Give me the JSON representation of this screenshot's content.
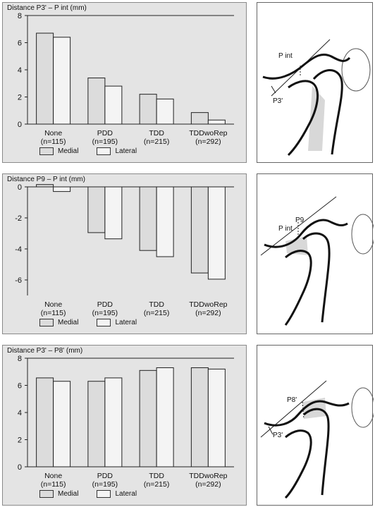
{
  "chart_data": [
    {
      "type": "bar",
      "title": "Distance P3' – P int (mm)",
      "categories": [
        "None",
        "PDD",
        "TDD",
        "TDDwoRep"
      ],
      "category_sublabels": [
        "(n=115)",
        "(n=195)",
        "(n=215)",
        "(n=292)"
      ],
      "series": [
        {
          "name": "Medial",
          "values": [
            6.7,
            3.4,
            2.2,
            0.85
          ]
        },
        {
          "name": "Lateral",
          "values": [
            6.4,
            2.8,
            1.85,
            0.3
          ]
        }
      ],
      "ylim": [
        0,
        8
      ],
      "yticks": [
        0,
        2,
        4,
        6,
        8
      ],
      "xlabel": "",
      "ylabel": "",
      "grid": false,
      "legend_position": "bottom"
    },
    {
      "type": "bar",
      "title": "Distance P9 – P int (mm)",
      "categories": [
        "None",
        "PDD",
        "TDD",
        "TDDwoRep"
      ],
      "category_sublabels": [
        "(n=115)",
        "(n=195)",
        "(n=215)",
        "(n=292)"
      ],
      "series": [
        {
          "name": "Medial",
          "values": [
            0.15,
            -2.95,
            -4.1,
            -5.55
          ]
        },
        {
          "name": "Lateral",
          "values": [
            -0.3,
            -3.35,
            -4.5,
            -5.95
          ]
        }
      ],
      "ylim": [
        -7,
        0
      ],
      "yticks": [
        0,
        -2,
        -4,
        -6
      ],
      "xlabel": "",
      "ylabel": "",
      "grid": false,
      "legend_position": "bottom"
    },
    {
      "type": "bar",
      "title": "Distance P3' – P8' (mm)",
      "categories": [
        "None",
        "PDD",
        "TDD",
        "TDDwoRep"
      ],
      "category_sublabels": [
        "(n=115)",
        "(n=195)",
        "(n=215)",
        "(n=292)"
      ],
      "series": [
        {
          "name": "Medial",
          "values": [
            6.55,
            6.3,
            7.1,
            7.3
          ]
        },
        {
          "name": "Lateral",
          "values": [
            6.3,
            6.55,
            7.3,
            7.2
          ]
        }
      ],
      "ylim": [
        0,
        8
      ],
      "yticks": [
        0,
        2,
        4,
        6,
        8
      ],
      "xlabel": "",
      "ylabel": "",
      "grid": false,
      "legend_position": "bottom"
    }
  ],
  "colors": {
    "medial": "#dcdcdc",
    "lateral": "#f4f4f4",
    "panel_bg": "#e4e4e4",
    "bar_stroke": "#222222"
  },
  "diagrams": [
    {
      "labels": [
        "P int",
        "P3'"
      ]
    },
    {
      "labels": [
        "P9",
        "P int"
      ]
    },
    {
      "labels": [
        "P8'",
        "P3'"
      ]
    }
  ]
}
